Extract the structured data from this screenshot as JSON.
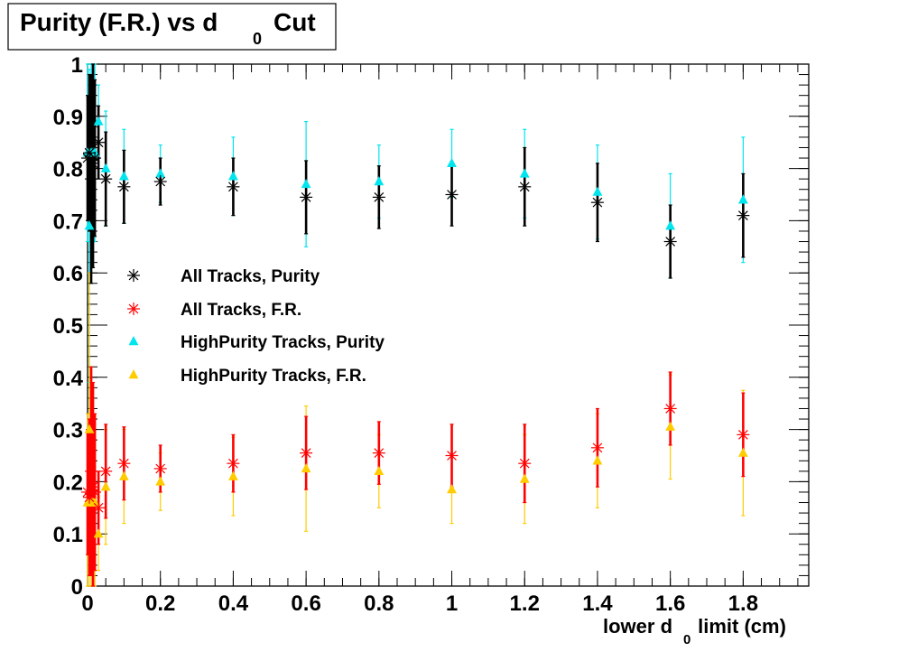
{
  "chart_data": {
    "type": "scatter",
    "title": "Purity (F.R.) vs d",
    "title_subscript": "0",
    "title_suffix": "Cut",
    "xlabel_prefix": "lower d",
    "xlabel_subscript": "0",
    "xlabel_suffix": " limit (cm)",
    "ylabel": "",
    "xlim": [
      0,
      1.98
    ],
    "ylim": [
      0,
      1
    ],
    "x_ticks": [
      "0",
      "0.2",
      "0.4",
      "0.6",
      "0.8",
      "1",
      "1.2",
      "1.4",
      "1.6",
      "1.8"
    ],
    "y_ticks": [
      "0",
      "0.1",
      "0.2",
      "0.3",
      "0.4",
      "0.5",
      "0.6",
      "0.7",
      "0.8",
      "0.9",
      "1"
    ],
    "grid": false,
    "legend_position": "left-middle",
    "series": [
      {
        "name": "All Tracks, Purity",
        "marker": "star",
        "color": "#000000",
        "x": [
          0.0,
          0.005,
          0.01,
          0.015,
          0.02,
          0.03,
          0.05,
          0.1,
          0.2,
          0.4,
          0.6,
          0.8,
          1.0,
          1.2,
          1.4,
          1.6,
          1.8
        ],
        "y": [
          0.82,
          0.83,
          0.78,
          0.81,
          0.82,
          0.85,
          0.78,
          0.765,
          0.775,
          0.765,
          0.745,
          0.745,
          0.75,
          0.765,
          0.735,
          0.66,
          0.71
        ],
        "err": [
          0.12,
          0.15,
          0.2,
          0.2,
          0.15,
          0.07,
          0.09,
          0.07,
          0.045,
          0.055,
          0.07,
          0.06,
          0.06,
          0.075,
          0.075,
          0.07,
          0.08
        ]
      },
      {
        "name": "All Tracks, F.R.",
        "marker": "star",
        "color": "#ff0000",
        "x": [
          0.0,
          0.005,
          0.01,
          0.015,
          0.02,
          0.03,
          0.05,
          0.1,
          0.2,
          0.4,
          0.6,
          0.8,
          1.0,
          1.2,
          1.4,
          1.6,
          1.8
        ],
        "y": [
          0.18,
          0.17,
          0.22,
          0.19,
          0.18,
          0.15,
          0.22,
          0.235,
          0.225,
          0.235,
          0.255,
          0.255,
          0.25,
          0.235,
          0.265,
          0.34,
          0.29
        ],
        "err": [
          0.12,
          0.15,
          0.2,
          0.2,
          0.15,
          0.07,
          0.09,
          0.07,
          0.045,
          0.055,
          0.07,
          0.06,
          0.06,
          0.075,
          0.075,
          0.07,
          0.08
        ]
      },
      {
        "name": "HighPurity Tracks, Purity",
        "marker": "triangle",
        "color": "#00e5ee",
        "x": [
          0.0,
          0.005,
          0.01,
          0.015,
          0.02,
          0.03,
          0.05,
          0.1,
          0.2,
          0.4,
          0.6,
          0.8,
          1.0,
          1.2,
          1.4,
          1.6,
          1.8
        ],
        "y": [
          0.83,
          0.69,
          0.83,
          0.83,
          0.83,
          0.89,
          0.8,
          0.785,
          0.79,
          0.785,
          0.77,
          0.775,
          0.81,
          0.79,
          0.755,
          0.69,
          0.74
        ],
        "err": [
          0.17,
          0.3,
          0.17,
          0.17,
          0.17,
          0.07,
          0.11,
          0.09,
          0.055,
          0.075,
          0.12,
          0.07,
          0.065,
          0.085,
          0.09,
          0.1,
          0.12
        ]
      },
      {
        "name": "HighPurity Tracks, F.R.",
        "marker": "triangle",
        "color": "#ffcc00",
        "x": [
          0.0,
          0.005,
          0.01,
          0.015,
          0.02,
          0.03,
          0.05,
          0.1,
          0.2,
          0.4,
          0.6,
          0.8,
          1.0,
          1.2,
          1.4,
          1.6,
          1.8
        ],
        "y": [
          0.16,
          0.3,
          0.16,
          0.16,
          0.16,
          0.1,
          0.19,
          0.21,
          0.2,
          0.21,
          0.225,
          0.22,
          0.185,
          0.205,
          0.24,
          0.305,
          0.255
        ],
        "err": [
          0.17,
          0.3,
          0.17,
          0.17,
          0.17,
          0.07,
          0.11,
          0.09,
          0.055,
          0.075,
          0.12,
          0.07,
          0.065,
          0.085,
          0.09,
          0.1,
          0.12
        ]
      }
    ]
  }
}
